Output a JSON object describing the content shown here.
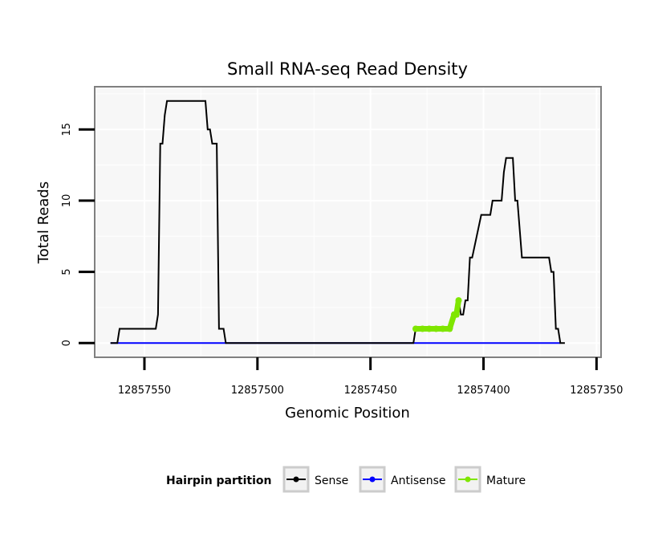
{
  "chart_data": {
    "type": "line",
    "title": "Small RNA-seq Read Density",
    "xlabel": "Genomic Position",
    "ylabel": "Total Reads",
    "x_reversed": true,
    "xlim": [
      12857572,
      12857348
    ],
    "ylim": [
      -1,
      18
    ],
    "x_ticks": [
      12857550,
      12857500,
      12857450,
      12857400,
      12857350
    ],
    "x_tick_labels": [
      "12857550",
      "12857500",
      "12857450",
      "12857400",
      "12857350"
    ],
    "y_ticks": [
      0,
      5,
      10,
      15
    ],
    "y_tick_labels": [
      "0",
      "5",
      "10",
      "15"
    ],
    "grid": true,
    "legend": {
      "title": "Hairpin partition",
      "position": "bottom",
      "entries": [
        "Sense",
        "Antisense",
        "Mature"
      ]
    },
    "series": [
      {
        "name": "Sense",
        "color": "#000000",
        "points": [
          [
            12857565,
            0
          ],
          [
            12857562,
            0
          ],
          [
            12857561,
            1
          ],
          [
            12857545,
            1
          ],
          [
            12857544,
            2
          ],
          [
            12857543,
            14
          ],
          [
            12857542,
            14
          ],
          [
            12857541,
            16
          ],
          [
            12857540,
            17
          ],
          [
            12857523,
            17
          ],
          [
            12857522,
            15
          ],
          [
            12857521,
            15
          ],
          [
            12857520,
            14
          ],
          [
            12857518,
            14
          ],
          [
            12857517,
            1
          ],
          [
            12857515,
            1
          ],
          [
            12857514,
            0
          ],
          [
            12857431,
            0
          ],
          [
            12857430,
            1
          ],
          [
            12857414,
            1
          ],
          [
            12857413,
            2
          ],
          [
            12857412,
            2
          ],
          [
            12857411,
            3
          ],
          [
            12857410,
            2
          ],
          [
            12857409,
            2
          ],
          [
            12857408,
            3
          ],
          [
            12857407,
            3
          ],
          [
            12857406,
            6
          ],
          [
            12857405,
            6
          ],
          [
            12857401,
            9
          ],
          [
            12857397,
            9
          ],
          [
            12857396,
            10
          ],
          [
            12857392,
            10
          ],
          [
            12857391,
            12
          ],
          [
            12857390,
            13
          ],
          [
            12857387,
            13
          ],
          [
            12857386,
            10
          ],
          [
            12857385,
            10
          ],
          [
            12857383,
            6
          ],
          [
            12857371,
            6
          ],
          [
            12857370,
            5
          ],
          [
            12857369,
            5
          ],
          [
            12857368,
            1
          ],
          [
            12857367,
            1
          ],
          [
            12857366,
            0
          ],
          [
            12857364,
            0
          ]
        ]
      },
      {
        "name": "Antisense",
        "color": "#0000ff",
        "points": [
          [
            12857565,
            0
          ],
          [
            12857366,
            0
          ]
        ]
      },
      {
        "name": "Mature",
        "color": "#7fe600",
        "points": [
          [
            12857430,
            1
          ],
          [
            12857427,
            1
          ],
          [
            12857424,
            1
          ],
          [
            12857421,
            1
          ],
          [
            12857418,
            1
          ],
          [
            12857415,
            1
          ],
          [
            12857413,
            2
          ],
          [
            12857412,
            2
          ],
          [
            12857411,
            3
          ]
        ]
      }
    ]
  }
}
